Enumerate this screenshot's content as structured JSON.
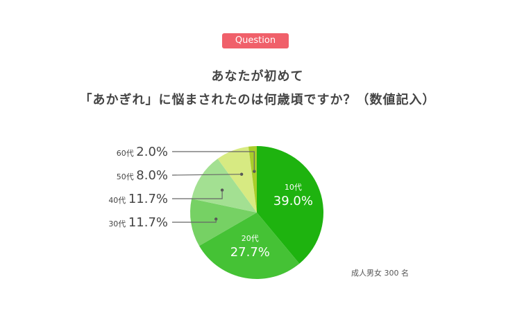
{
  "badge": "Question",
  "question": {
    "line1": "あなたが初めて",
    "line2": "「あかぎれ」に悩まされたのは何歳頃ですか？（数値記入）"
  },
  "sample_note": "成人男女 300 名",
  "chart_data": {
    "type": "pie",
    "start": "12 o'clock",
    "direction": "clockwise",
    "slices": [
      {
        "label": "10代",
        "value": 39.0,
        "display": "39.0%",
        "color": "#1eb30f",
        "label_position": "inside"
      },
      {
        "label": "20代",
        "value": 27.7,
        "display": "27.7%",
        "color": "#45c235",
        "label_position": "inside"
      },
      {
        "label": "30代",
        "value": 11.7,
        "display": "11.7%",
        "color": "#76d164",
        "label_position": "outside-left"
      },
      {
        "label": "40代",
        "value": 11.7,
        "display": "11.7%",
        "color": "#a3e092",
        "label_position": "outside-left"
      },
      {
        "label": "50代",
        "value": 8.0,
        "display": "8.0%",
        "color": "#d7ea82",
        "label_position": "outside-left"
      },
      {
        "label": "60代",
        "value": 2.0,
        "display": "2.0%",
        "color": "#a9cd2a",
        "label_position": "outside-left"
      }
    ]
  }
}
